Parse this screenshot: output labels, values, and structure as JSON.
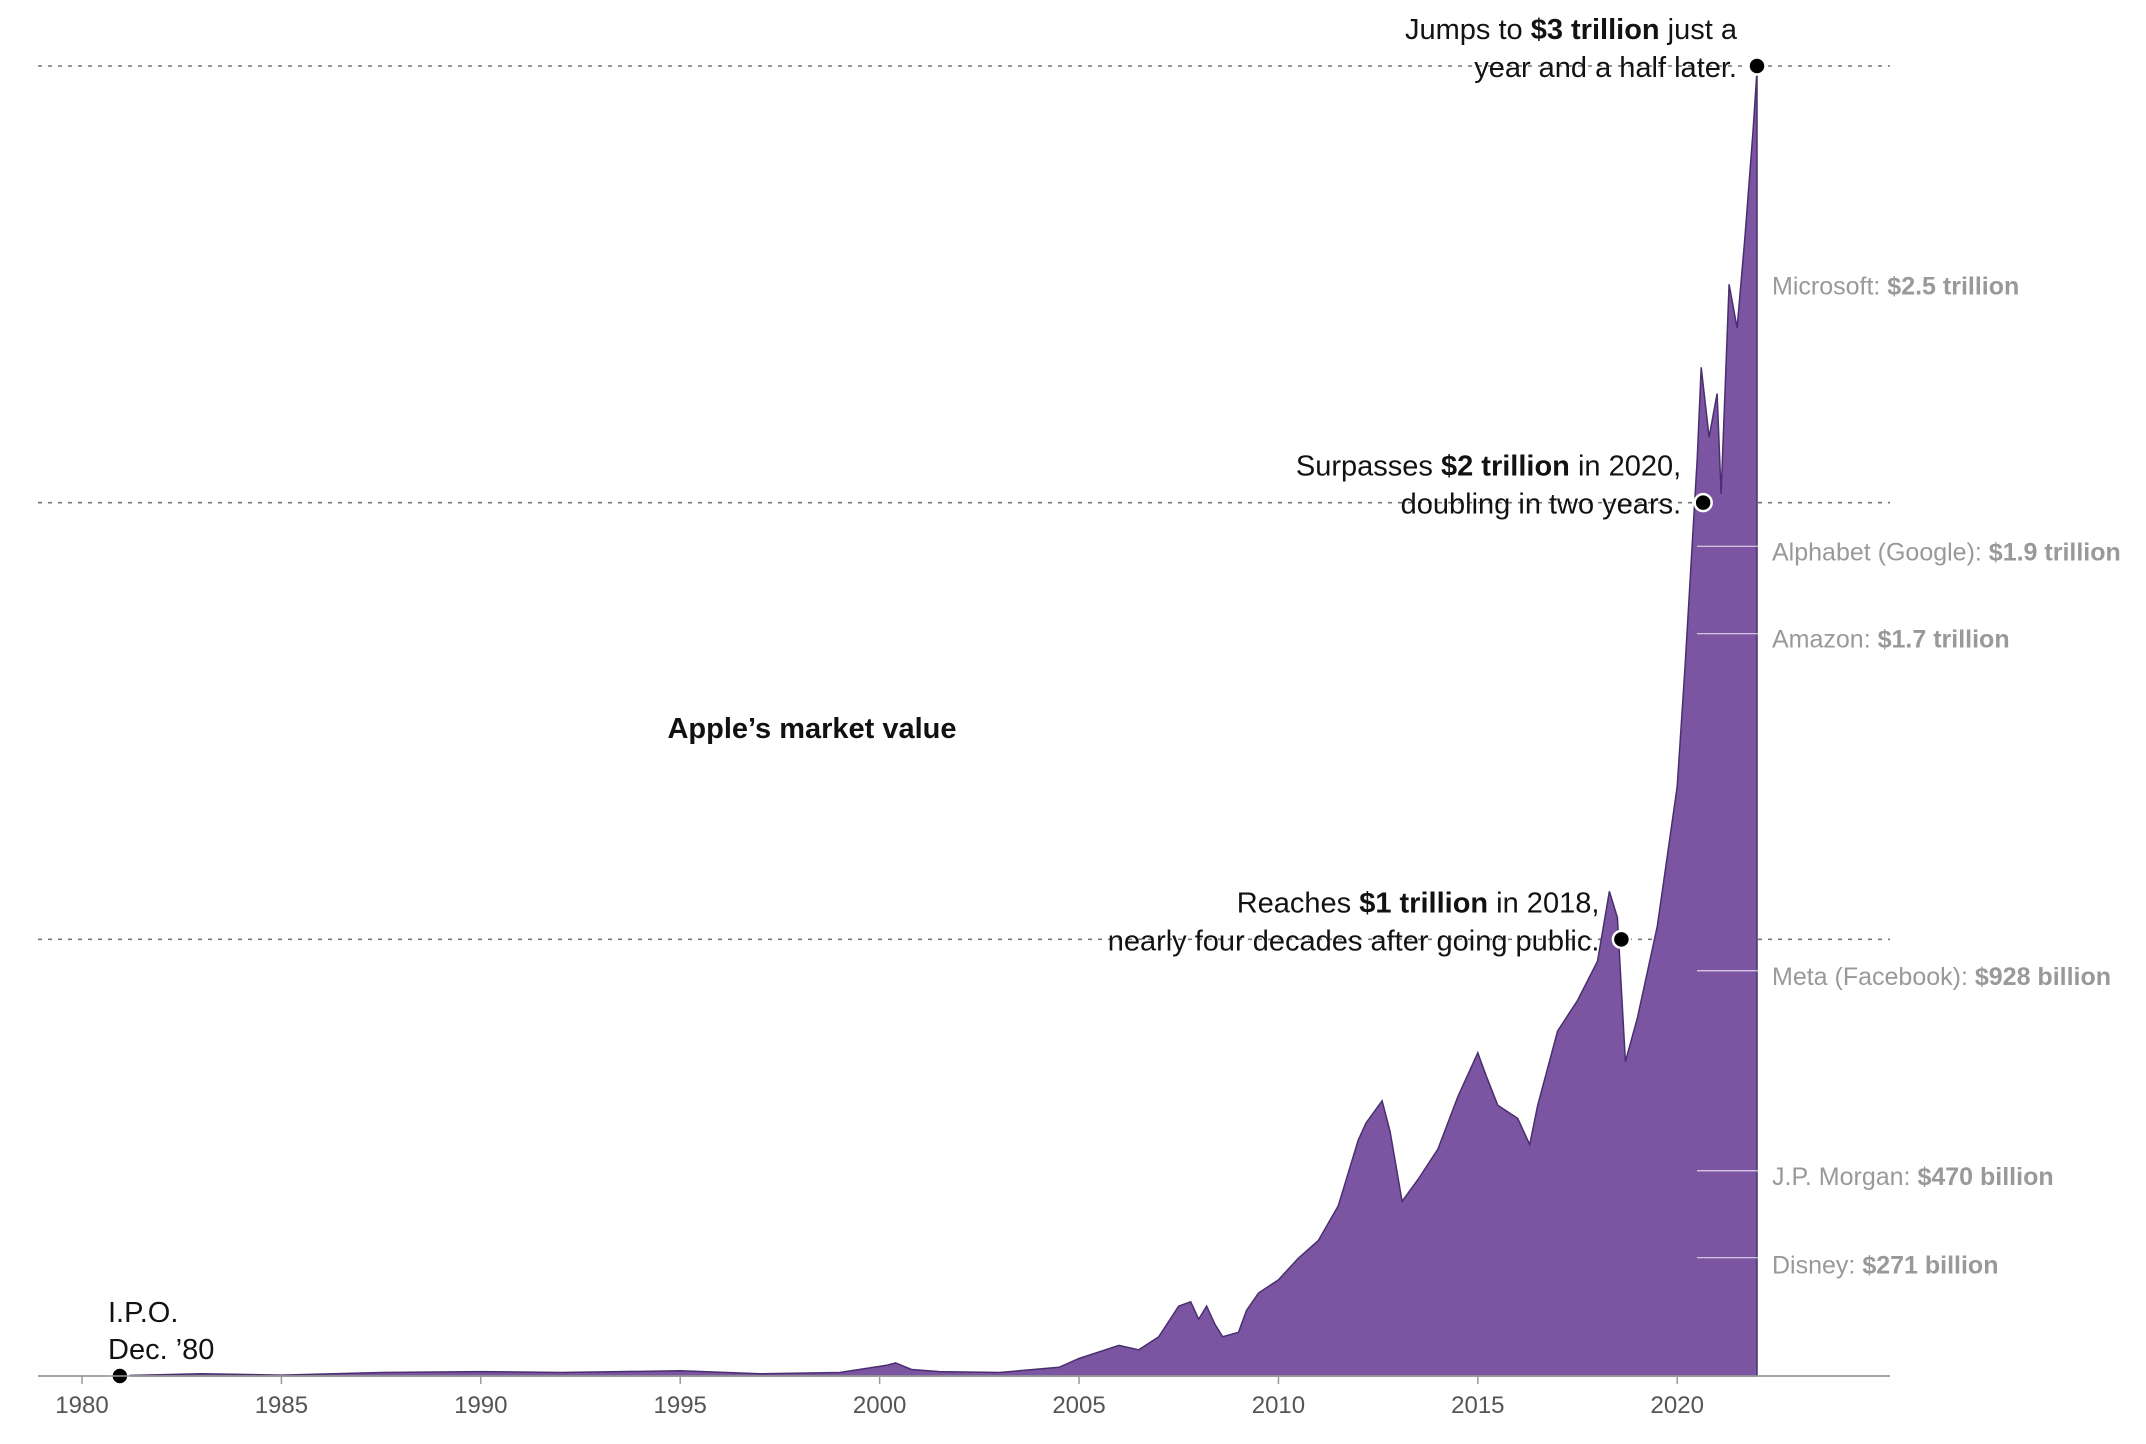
{
  "chart_data": {
    "type": "area",
    "x_unit": "year",
    "y_unit": "USD billions",
    "xlim": [
      1979.9,
      2024.5
    ],
    "ylim": [
      0,
      3000
    ],
    "grid": false,
    "series_label": "Apple’s market value",
    "series_color": "#7b55a1",
    "x_ticks": [
      {
        "value": 1980,
        "label": "1980"
      },
      {
        "value": 1985,
        "label": "1985"
      },
      {
        "value": 1990,
        "label": "1990"
      },
      {
        "value": 1995,
        "label": "1995"
      },
      {
        "value": 2000,
        "label": "2000"
      },
      {
        "value": 2005,
        "label": "2005"
      },
      {
        "value": 2010,
        "label": "2010"
      },
      {
        "value": 2015,
        "label": "2015"
      },
      {
        "value": 2020,
        "label": "2020"
      }
    ],
    "series": [
      {
        "x": [
          1980.95,
          1983.0,
          1985.0,
          1987.5,
          1990.0,
          1992.0,
          1995.0,
          1997.0,
          1999.0,
          2000.2,
          2000.4,
          2000.8,
          2001.5,
          2003.0,
          2004.5,
          2005.0,
          2006.0,
          2006.5,
          2007.0,
          2007.5,
          2007.8,
          2008.0,
          2008.2,
          2008.4,
          2008.6,
          2009.0,
          2009.2,
          2009.5,
          2010.0,
          2010.5,
          2011.0,
          2011.5,
          2012.0,
          2012.2,
          2012.6,
          2012.8,
          2013.1,
          2013.5,
          2014.0,
          2014.5,
          2015.0,
          2015.2,
          2015.5,
          2016.0,
          2016.3,
          2016.5,
          2017.0,
          2017.5,
          2018.0,
          2018.3,
          2018.5,
          2018.7,
          2019.0,
          2019.5,
          2020.0,
          2020.2,
          2020.5,
          2020.6,
          2020.8,
          2021.0,
          2021.1,
          2021.3,
          2021.5,
          2021.7,
          2021.9,
          2022.0
        ],
        "y": [
          1,
          5,
          2,
          8,
          10,
          8,
          12,
          5,
          8,
          25,
          30,
          15,
          10,
          8,
          20,
          40,
          70,
          60,
          90,
          160,
          170,
          130,
          160,
          120,
          90,
          100,
          150,
          190,
          220,
          270,
          310,
          390,
          540,
          580,
          630,
          560,
          400,
          450,
          520,
          640,
          740,
          690,
          620,
          590,
          530,
          620,
          790,
          860,
          950,
          1110,
          1050,
          720,
          820,
          1030,
          1350,
          1630,
          2100,
          2310,
          2150,
          2250,
          2020,
          2500,
          2400,
          2610,
          2850,
          2990
        ]
      }
    ],
    "reference_lines": [
      {
        "value": 3000
      },
      {
        "value": 2000
      },
      {
        "value": 1000
      }
    ],
    "annotations": [
      {
        "x": 1980.95,
        "y": 0,
        "lines": [
          [
            "I.P.O."
          ],
          [
            "Dec. ’80"
          ]
        ]
      },
      {
        "x": 2018.6,
        "y": 1000,
        "lines": [
          [
            "Reaches ",
            "$1 trillion",
            " in 2018,"
          ],
          [
            "nearly four decades after going public."
          ]
        ]
      },
      {
        "x": 2020.65,
        "y": 2000,
        "lines": [
          [
            "Surpasses ",
            "$2 trillion",
            " in 2020,"
          ],
          [
            "doubling in two years."
          ]
        ]
      },
      {
        "x": 2022.0,
        "y": 3000,
        "lines": [
          [
            "Jumps to ",
            "$3 trillion",
            " just a"
          ],
          [
            "year and a half later."
          ]
        ]
      }
    ],
    "comparisons": [
      {
        "name": "Microsoft: ",
        "value_label": "$2.5 trillion",
        "value": 2500,
        "tick": false
      },
      {
        "name": "Alphabet (Google): ",
        "value_label": "$1.9 trillion",
        "value": 1900,
        "tick": true
      },
      {
        "name": "Amazon: ",
        "value_label": "$1.7 trillion",
        "value": 1700,
        "tick": true
      },
      {
        "name": "Meta (Facebook): ",
        "value_label": "$928 billion",
        "value": 928,
        "tick": true
      },
      {
        "name": "J.P. Morgan: ",
        "value_label": "$470 billion",
        "value": 470,
        "tick": true
      },
      {
        "name": "Disney: ",
        "value_label": "$271 billion",
        "value": 271,
        "tick": true
      }
    ]
  }
}
